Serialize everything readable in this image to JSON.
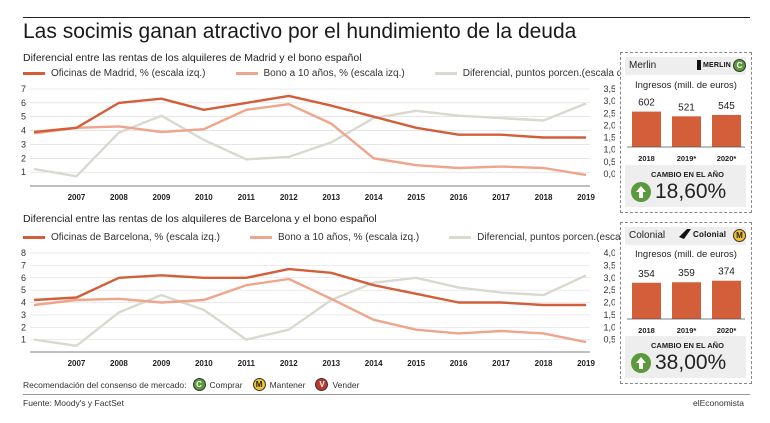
{
  "title": "Las socimis ganan atractivo por el hundimiento de la deuda",
  "colors": {
    "office": "#d35f3a",
    "bond": "#eea58b",
    "spread": "#d9d9cf",
    "bar": "#d35f3a",
    "green": "#5a9a3c"
  },
  "chart_data": [
    {
      "type": "line",
      "title": "Diferencial entre las rentas de los alquileres de Madrid y el bono español",
      "x": [
        "2006",
        "2007",
        "2008",
        "2009",
        "2010",
        "2011",
        "2012",
        "2013",
        "2014",
        "2015",
        "2016",
        "2017",
        "2018",
        "2019"
      ],
      "xticks": [
        "2007",
        "2008",
        "2009",
        "2010",
        "2011",
        "2012",
        "2013",
        "2014",
        "2015",
        "2016",
        "2017",
        "2018",
        "2019"
      ],
      "yticks_left": [
        "1",
        "2",
        "3",
        "4",
        "5",
        "6",
        "7"
      ],
      "yticks_right": [
        "0,0",
        "0,5",
        "1,0",
        "1,5",
        "2,0",
        "2,5",
        "3,0",
        "3,5"
      ],
      "ylim_left": [
        0,
        7
      ],
      "ylim_right": [
        -0.5,
        3.5
      ],
      "series": [
        {
          "name": "Oficinas de Madrid, % (escala izq.)",
          "axis": "left",
          "values": [
            3.9,
            4.2,
            6.0,
            6.3,
            5.5,
            6.0,
            6.5,
            5.8,
            5.0,
            4.2,
            3.7,
            3.7,
            3.5,
            3.5
          ]
        },
        {
          "name": "Bono a 10 años, % (escala izq.)",
          "axis": "left",
          "values": [
            3.8,
            4.2,
            4.3,
            3.9,
            4.1,
            5.5,
            5.9,
            4.5,
            2.0,
            1.5,
            1.3,
            1.4,
            1.3,
            0.8
          ]
        },
        {
          "name": "Diferencial, puntos porcen.(escala dcha.)",
          "axis": "right",
          "values": [
            0.2,
            -0.1,
            1.7,
            2.4,
            1.4,
            0.6,
            0.7,
            1.3,
            2.3,
            2.6,
            2.4,
            2.3,
            2.2,
            2.9
          ]
        }
      ]
    },
    {
      "type": "line",
      "title": "Diferencial entre las rentas de los alquileres de Barcelona y el bono español",
      "x": [
        "2006",
        "2007",
        "2008",
        "2009",
        "2010",
        "2011",
        "2012",
        "2013",
        "2014",
        "2015",
        "2016",
        "2017",
        "2018",
        "2019"
      ],
      "xticks": [
        "2007",
        "2008",
        "2009",
        "2010",
        "2011",
        "2012",
        "2013",
        "2014",
        "2015",
        "2016",
        "2017",
        "2018",
        "2019"
      ],
      "yticks_left": [
        "1",
        "2",
        "3",
        "4",
        "5",
        "6",
        "7",
        "8"
      ],
      "yticks_right": [
        "0,5",
        "1,0",
        "1,5",
        "2,0",
        "2,5",
        "3,0",
        "3,5",
        "4,0"
      ],
      "ylim_left": [
        0,
        8
      ],
      "ylim_right": [
        0,
        4.0
      ],
      "series": [
        {
          "name": "Oficinas de Barcelona, % (escala izq.)",
          "axis": "left",
          "values": [
            4.2,
            4.4,
            6.0,
            6.2,
            6.0,
            6.0,
            6.7,
            6.4,
            5.4,
            4.7,
            4.0,
            4.0,
            3.8,
            3.8
          ]
        },
        {
          "name": "Bono a 10 años, % (escala izq.)",
          "axis": "left",
          "values": [
            3.8,
            4.2,
            4.3,
            4.0,
            4.2,
            5.4,
            5.9,
            4.3,
            2.6,
            1.8,
            1.5,
            1.7,
            1.5,
            0.8
          ]
        },
        {
          "name": "Diferencial, puntos porcen.(escala dcha.)",
          "axis": "right",
          "values": [
            0.5,
            0.25,
            1.6,
            2.3,
            1.7,
            0.5,
            0.9,
            2.1,
            2.8,
            3.0,
            2.6,
            2.4,
            2.3,
            3.1
          ]
        }
      ]
    }
  ],
  "panels": [
    {
      "name": "Merlin",
      "brand": "MERLIN",
      "badge": "C",
      "badge_color": "#5a9a3c",
      "income_label": "Ingresos (mill. de euros)",
      "bars": [
        {
          "year": "2018",
          "value": 602,
          "label": "602"
        },
        {
          "year": "2019*",
          "value": 521,
          "label": "521"
        },
        {
          "year": "2020*",
          "value": 545,
          "label": "545"
        }
      ],
      "cambio_label": "CAMBIO EN EL AÑO",
      "cambio_value": "18,60%"
    },
    {
      "name": "Colonial",
      "brand": "Colonial",
      "badge": "M",
      "badge_color": "#f2c12e",
      "income_label": "Ingresos (mill. de euros)",
      "bars": [
        {
          "year": "2018",
          "value": 354,
          "label": "354"
        },
        {
          "year": "2019*",
          "value": 359,
          "label": "359"
        },
        {
          "year": "2020*",
          "value": 374,
          "label": "374"
        }
      ],
      "cambio_label": "CAMBIO EN EL AÑO",
      "cambio_value": "38,00%"
    }
  ],
  "recommendation": {
    "label": "Recomendación del consenso de mercado:",
    "items": [
      {
        "badge": "C",
        "label": "Comprar",
        "color": "#5a9a3c"
      },
      {
        "badge": "M",
        "label": "Mantener",
        "color": "#f2c12e"
      },
      {
        "badge": "V",
        "label": "Vender",
        "color": "#c0392b"
      }
    ]
  },
  "footer": {
    "source": "Fuente: Moody's y FactSet",
    "brand": "elEconomista"
  }
}
